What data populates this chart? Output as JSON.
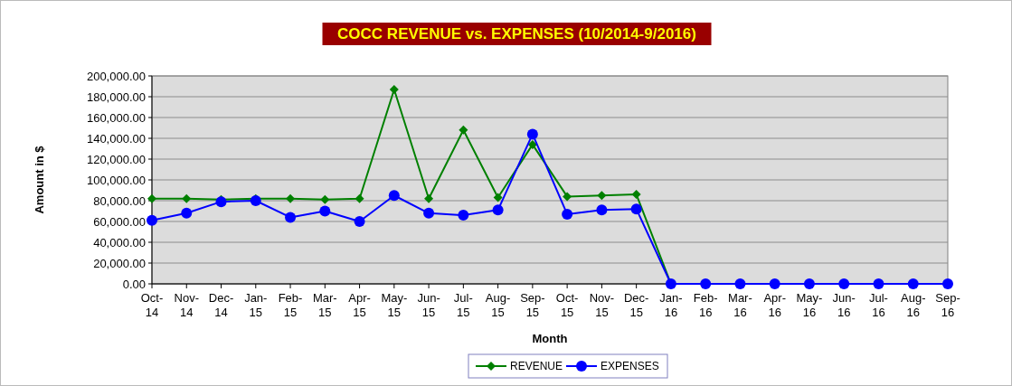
{
  "chart_data": {
    "type": "line",
    "title": "COCC REVENUE vs. EXPENSES (10/2014-9/2016)",
    "xlabel": "Month",
    "ylabel": "Amount in $",
    "categories": [
      "Oct-14",
      "Nov-14",
      "Dec-14",
      "Jan-15",
      "Feb-15",
      "Mar-15",
      "Apr-15",
      "May-15",
      "Jun-15",
      "Jul-15",
      "Aug-15",
      "Sep-15",
      "Oct-15",
      "Nov-15",
      "Dec-15",
      "Jan-16",
      "Feb-16",
      "Mar-16",
      "Apr-16",
      "May-16",
      "Jun-16",
      "Jul-16",
      "Aug-16",
      "Sep-16"
    ],
    "series": [
      {
        "name": "REVENUE",
        "color": "#008000",
        "marker": "diamond",
        "values": [
          82000,
          82000,
          81000,
          82000,
          82000,
          81000,
          82000,
          187000,
          82000,
          148000,
          83000,
          134000,
          84000,
          85000,
          86000,
          0,
          null,
          null,
          null,
          null,
          null,
          null,
          null,
          null
        ]
      },
      {
        "name": "EXPENSES",
        "color": "#0000ff",
        "marker": "circle",
        "values": [
          61000,
          68000,
          79000,
          80000,
          64000,
          70000,
          60000,
          85000,
          68000,
          66000,
          71000,
          144000,
          67000,
          71000,
          72000,
          0,
          0,
          0,
          0,
          0,
          0,
          0,
          0,
          0
        ]
      }
    ],
    "ylim": [
      0,
      200000
    ],
    "yticks": [
      {
        "value": 0,
        "label": "0.00"
      },
      {
        "value": 20000,
        "label": "20,000.00"
      },
      {
        "value": 40000,
        "label": "40,000.00"
      },
      {
        "value": 60000,
        "label": "60,000.00"
      },
      {
        "value": 80000,
        "label": "80,000.00"
      },
      {
        "value": 100000,
        "label": "100,000.00"
      },
      {
        "value": 120000,
        "label": "120,000.00"
      },
      {
        "value": 140000,
        "label": "140,000.00"
      },
      {
        "value": 160000,
        "label": "160,000.00"
      },
      {
        "value": 180000,
        "label": "180,000.00"
      },
      {
        "value": 200000,
        "label": "200,000.00"
      }
    ],
    "grid": "y",
    "legend": "bottom",
    "line_style": "solid"
  }
}
